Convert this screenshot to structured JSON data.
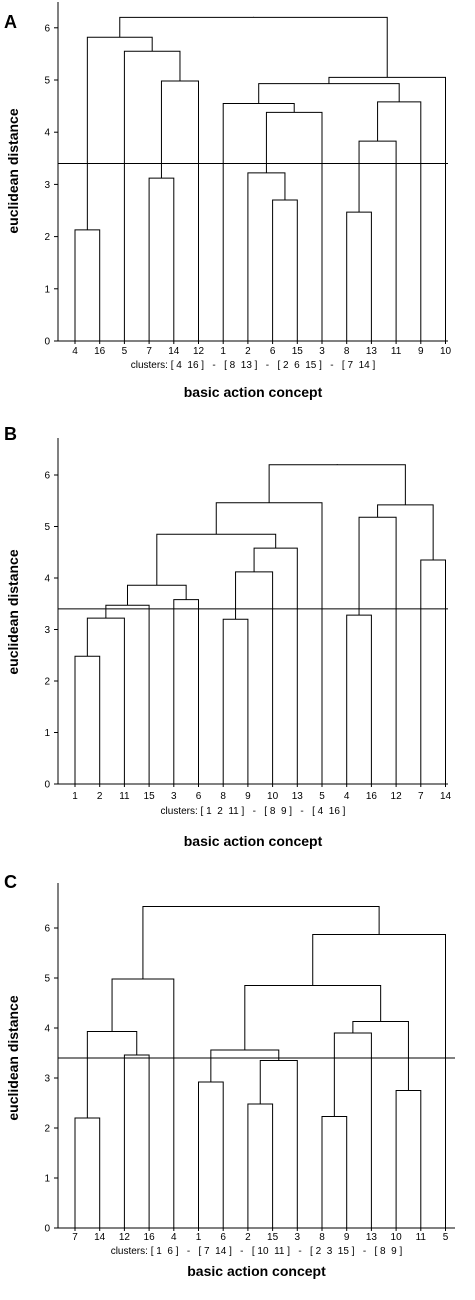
{
  "chart_data": [
    {
      "type": "dendrogram",
      "panel_label": "A",
      "ylabel": "euclidean distance",
      "xlabel": "basic action concept",
      "ylim": [
        0,
        6.5
      ],
      "yticks": [
        0,
        1,
        2,
        3,
        4,
        5,
        6
      ],
      "cutoff": 3.4,
      "leaves": [
        "4",
        "16",
        "5",
        "7",
        "14",
        "12",
        "1",
        "2",
        "6",
        "15",
        "3",
        "8",
        "13",
        "11",
        "9",
        "10"
      ],
      "clusters_text": "clusters: [ 4  16 ]   -   [ 8  13 ]   -   [ 2  6  15 ]   -   [ 7  14 ]",
      "merges": [
        {
          "a": "L0",
          "b": "L1",
          "h": 2.13
        },
        {
          "a": "L3",
          "b": "L4",
          "h": 3.12
        },
        {
          "a": "N1",
          "b": "L5",
          "h": 4.98
        },
        {
          "a": "L2",
          "b": "N2",
          "h": 5.55
        },
        {
          "a": "N0",
          "b": "N3",
          "h": 5.82
        },
        {
          "a": "L8",
          "b": "L9",
          "h": 2.7
        },
        {
          "a": "L7",
          "b": "N5",
          "h": 3.22
        },
        {
          "a": "N6",
          "b": "L10",
          "h": 4.38
        },
        {
          "a": "L6",
          "b": "N7",
          "h": 4.55
        },
        {
          "a": "L11",
          "b": "L12",
          "h": 2.47
        },
        {
          "a": "N9",
          "b": "L13",
          "h": 3.83
        },
        {
          "a": "N10",
          "b": "L14",
          "h": 4.58
        },
        {
          "a": "N8",
          "b": "N11",
          "h": 4.93
        },
        {
          "a": "N12",
          "b": "L15",
          "h": 5.05
        },
        {
          "a": "N4",
          "b": "N13",
          "h": 6.2
        }
      ]
    },
    {
      "type": "dendrogram",
      "panel_label": "B",
      "ylabel": "euclidean distance",
      "xlabel": "basic action concept",
      "ylim": [
        0,
        6.5
      ],
      "yticks": [
        0,
        1,
        2,
        3,
        4,
        5,
        6
      ],
      "cutoff": 3.4,
      "leaves": [
        "1",
        "2",
        "11",
        "15",
        "3",
        "6",
        "8",
        "9",
        "10",
        "13",
        "5",
        "4",
        "16",
        "12",
        "7",
        "14"
      ],
      "clusters_text": "clusters: [ 1  2  11 ]   -   [ 8  9 ]   -   [ 4  16 ]",
      "merges": [
        {
          "a": "L0",
          "b": "L1",
          "h": 2.48
        },
        {
          "a": "N0",
          "b": "L2",
          "h": 3.22
        },
        {
          "a": "N1",
          "b": "L3",
          "h": 3.47
        },
        {
          "a": "L4",
          "b": "L5",
          "h": 3.58
        },
        {
          "a": "N2",
          "b": "N3",
          "h": 3.86
        },
        {
          "a": "L6",
          "b": "L7",
          "h": 3.2
        },
        {
          "a": "N5",
          "b": "L8",
          "h": 4.12
        },
        {
          "a": "N6",
          "b": "L9",
          "h": 4.58
        },
        {
          "a": "N4",
          "b": "N7",
          "h": 4.85
        },
        {
          "a": "N8",
          "b": "L10",
          "h": 5.46
        },
        {
          "a": "L11",
          "b": "L12",
          "h": 3.28
        },
        {
          "a": "N10",
          "b": "L13",
          "h": 5.18
        },
        {
          "a": "L14",
          "b": "L15",
          "h": 4.35
        },
        {
          "a": "N11",
          "b": "N12",
          "h": 5.42
        },
        {
          "a": "N9",
          "b": "N13",
          "h": 6.2
        }
      ]
    },
    {
      "type": "dendrogram",
      "panel_label": "C",
      "ylabel": "euclidean distance",
      "xlabel": "basic action concept",
      "ylim": [
        0,
        6.7
      ],
      "yticks": [
        0,
        1,
        2,
        3,
        4,
        5,
        6
      ],
      "cutoff": 3.4,
      "leaves": [
        "7",
        "14",
        "12",
        "16",
        "4",
        "1",
        "6",
        "2",
        "15",
        "3",
        "8",
        "9",
        "13",
        "10",
        "11",
        "5"
      ],
      "clusters_text": "clusters: [ 1  6 ]   -   [ 7  14 ]   -   [ 10  11 ]   -   [ 2  3  15 ]   -   [ 8  9 ]",
      "merges": [
        {
          "a": "L0",
          "b": "L1",
          "h": 2.2
        },
        {
          "a": "L2",
          "b": "L3",
          "h": 3.46
        },
        {
          "a": "N0",
          "b": "N1",
          "h": 3.93
        },
        {
          "a": "N2",
          "b": "L4",
          "h": 4.98
        },
        {
          "a": "L5",
          "b": "L6",
          "h": 2.92
        },
        {
          "a": "L7",
          "b": "L8",
          "h": 2.48
        },
        {
          "a": "N5",
          "b": "L9",
          "h": 3.35
        },
        {
          "a": "N4",
          "b": "N6",
          "h": 3.56
        },
        {
          "a": "L10",
          "b": "L11",
          "h": 2.23
        },
        {
          "a": "N8",
          "b": "L12",
          "h": 3.9
        },
        {
          "a": "L13",
          "b": "L14",
          "h": 2.75
        },
        {
          "a": "N9",
          "b": "N10",
          "h": 4.13
        },
        {
          "a": "N7",
          "b": "N11",
          "h": 4.85
        },
        {
          "a": "N12",
          "b": "L15",
          "h": 5.87
        },
        {
          "a": "N3",
          "b": "N13",
          "h": 6.43
        }
      ]
    }
  ]
}
